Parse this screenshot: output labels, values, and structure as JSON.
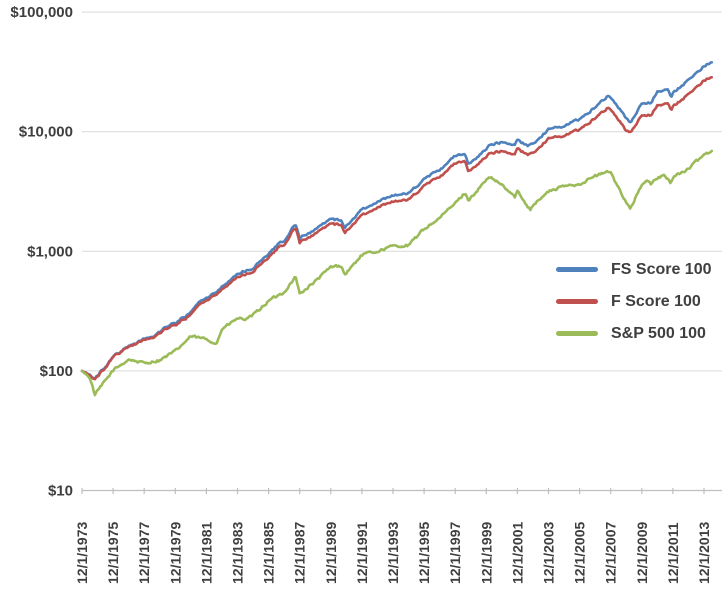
{
  "chart_data": {
    "type": "line",
    "title": "",
    "xlabel": "",
    "ylabel": "",
    "y_axis": {
      "scale": "log",
      "tick_labels": [
        "$10",
        "$100",
        "$1,000",
        "$10,000",
        "$100,000"
      ],
      "tick_values": [
        10,
        100,
        1000,
        10000,
        100000
      ],
      "ylim": [
        10,
        100000
      ]
    },
    "x_axis": {
      "tick_labels": [
        "12/1/1973",
        "12/1/1975",
        "12/1/1977",
        "12/1/1979",
        "12/1/1981",
        "12/1/1983",
        "12/1/1985",
        "12/1/1987",
        "12/1/1989",
        "12/1/1991",
        "12/1/1993",
        "12/1/1995",
        "12/1/1997",
        "12/1/1999",
        "12/1/2001",
        "12/1/2003",
        "12/1/2005",
        "12/1/2007",
        "12/1/2009",
        "12/1/2011",
        "12/1/2013"
      ],
      "label_rotation": -90
    },
    "x_domain_years": [
      1973.92,
      2013.92
    ],
    "grid": true,
    "grid_color": "#d9d9d9",
    "axis_color": "#bfbfbf",
    "text_color": "#3f3f3f",
    "legend_position": "right-middle",
    "series": [
      {
        "name": "FS Score 100",
        "color": "#4f81bd",
        "points": [
          [
            1973.92,
            100
          ],
          [
            1974.42,
            93
          ],
          [
            1974.75,
            85
          ],
          [
            1975.08,
            97
          ],
          [
            1975.92,
            131
          ],
          [
            1976.92,
            162
          ],
          [
            1977.42,
            172
          ],
          [
            1977.92,
            186
          ],
          [
            1978.58,
            196
          ],
          [
            1978.92,
            214
          ],
          [
            1979.42,
            237
          ],
          [
            1979.92,
            252
          ],
          [
            1980.25,
            270
          ],
          [
            1980.92,
            308
          ],
          [
            1981.5,
            380
          ],
          [
            1981.92,
            410
          ],
          [
            1982.42,
            440
          ],
          [
            1982.92,
            505
          ],
          [
            1983.92,
            650
          ],
          [
            1984.5,
            690
          ],
          [
            1984.92,
            725
          ],
          [
            1985.92,
            945
          ],
          [
            1986.5,
            1130
          ],
          [
            1986.92,
            1240
          ],
          [
            1987.65,
            1710
          ],
          [
            1987.92,
            1280
          ],
          [
            1988.92,
            1520
          ],
          [
            1989.92,
            1860
          ],
          [
            1990.58,
            1800
          ],
          [
            1990.83,
            1580
          ],
          [
            1991.92,
            2230
          ],
          [
            1992.92,
            2620
          ],
          [
            1993.92,
            2920
          ],
          [
            1994.92,
            3050
          ],
          [
            1995.92,
            3980
          ],
          [
            1996.92,
            4800
          ],
          [
            1997.92,
            6250
          ],
          [
            1998.58,
            6400
          ],
          [
            1998.75,
            5300
          ],
          [
            1999.92,
            7200
          ],
          [
            2000.25,
            7900
          ],
          [
            2000.92,
            8200
          ],
          [
            2001.75,
            7800
          ],
          [
            2001.92,
            8500
          ],
          [
            2002.58,
            7600
          ],
          [
            2002.92,
            8000
          ],
          [
            2003.92,
            10400
          ],
          [
            2004.92,
            11200
          ],
          [
            2005.92,
            12800
          ],
          [
            2006.92,
            16000
          ],
          [
            2007.8,
            20400
          ],
          [
            2007.92,
            19500
          ],
          [
            2008.75,
            14000
          ],
          [
            2008.92,
            13000
          ],
          [
            2009.17,
            11800
          ],
          [
            2009.92,
            17000
          ],
          [
            2010.5,
            17500
          ],
          [
            2010.92,
            21500
          ],
          [
            2011.58,
            22500
          ],
          [
            2011.83,
            19500
          ],
          [
            2011.92,
            21000
          ],
          [
            2012.92,
            27000
          ],
          [
            2013.92,
            35500
          ],
          [
            2014.42,
            38000
          ]
        ]
      },
      {
        "name": "F Score 100",
        "color": "#c0504d",
        "points": [
          [
            1973.92,
            100
          ],
          [
            1974.42,
            92
          ],
          [
            1974.75,
            84
          ],
          [
            1975.08,
            95
          ],
          [
            1975.92,
            130
          ],
          [
            1976.92,
            160
          ],
          [
            1977.42,
            170
          ],
          [
            1977.92,
            182
          ],
          [
            1978.58,
            192
          ],
          [
            1978.92,
            208
          ],
          [
            1979.42,
            228
          ],
          [
            1979.92,
            242
          ],
          [
            1980.25,
            258
          ],
          [
            1980.92,
            294
          ],
          [
            1981.5,
            360
          ],
          [
            1981.92,
            390
          ],
          [
            1982.42,
            420
          ],
          [
            1982.92,
            480
          ],
          [
            1983.92,
            612
          ],
          [
            1984.5,
            645
          ],
          [
            1984.92,
            680
          ],
          [
            1985.92,
            880
          ],
          [
            1986.5,
            1050
          ],
          [
            1986.92,
            1150
          ],
          [
            1987.65,
            1600
          ],
          [
            1987.92,
            1180
          ],
          [
            1988.92,
            1400
          ],
          [
            1989.92,
            1700
          ],
          [
            1990.58,
            1650
          ],
          [
            1990.83,
            1430
          ],
          [
            1991.92,
            2000
          ],
          [
            1992.92,
            2350
          ],
          [
            1993.92,
            2600
          ],
          [
            1994.92,
            2700
          ],
          [
            1995.92,
            3500
          ],
          [
            1996.92,
            4200
          ],
          [
            1997.92,
            5400
          ],
          [
            1998.58,
            5600
          ],
          [
            1998.75,
            4600
          ],
          [
            1999.92,
            6200
          ],
          [
            2000.25,
            6700
          ],
          [
            2000.92,
            6900
          ],
          [
            2001.75,
            6500
          ],
          [
            2001.92,
            7200
          ],
          [
            2002.58,
            6400
          ],
          [
            2002.92,
            6700
          ],
          [
            2003.92,
            8700
          ],
          [
            2004.92,
            9300
          ],
          [
            2005.92,
            10500
          ],
          [
            2006.92,
            13000
          ],
          [
            2007.8,
            16200
          ],
          [
            2007.92,
            15500
          ],
          [
            2008.75,
            11000
          ],
          [
            2008.92,
            10200
          ],
          [
            2009.17,
            9800
          ],
          [
            2009.92,
            13500
          ],
          [
            2010.5,
            13800
          ],
          [
            2010.92,
            16500
          ],
          [
            2011.58,
            17200
          ],
          [
            2011.83,
            15200
          ],
          [
            2011.92,
            16200
          ],
          [
            2012.92,
            20500
          ],
          [
            2013.92,
            27000
          ],
          [
            2014.42,
            28500
          ]
        ]
      },
      {
        "name": "S&P 500 100",
        "color": "#9bbb59",
        "points": [
          [
            1973.92,
            100
          ],
          [
            1974.42,
            88
          ],
          [
            1974.75,
            63
          ],
          [
            1975.08,
            72
          ],
          [
            1975.92,
            101
          ],
          [
            1976.92,
            125
          ],
          [
            1977.92,
            116
          ],
          [
            1978.92,
            123
          ],
          [
            1979.92,
            146
          ],
          [
            1980.92,
            194
          ],
          [
            1981.92,
            184
          ],
          [
            1982.58,
            170
          ],
          [
            1982.92,
            224
          ],
          [
            1983.92,
            274
          ],
          [
            1984.58,
            270
          ],
          [
            1984.92,
            292
          ],
          [
            1985.92,
            384
          ],
          [
            1986.92,
            456
          ],
          [
            1987.65,
            615
          ],
          [
            1987.92,
            440
          ],
          [
            1988.92,
            560
          ],
          [
            1989.92,
            737
          ],
          [
            1990.58,
            760
          ],
          [
            1990.83,
            640
          ],
          [
            1991.92,
            932
          ],
          [
            1992.92,
            1003
          ],
          [
            1993.92,
            1104
          ],
          [
            1994.92,
            1118
          ],
          [
            1995.92,
            1539
          ],
          [
            1996.92,
            1893
          ],
          [
            1997.92,
            2525
          ],
          [
            1998.58,
            3100
          ],
          [
            1998.75,
            2650
          ],
          [
            1999.92,
            3929
          ],
          [
            2000.25,
            4100
          ],
          [
            2000.92,
            3571
          ],
          [
            2001.75,
            2850
          ],
          [
            2001.92,
            3146
          ],
          [
            2002.75,
            2250
          ],
          [
            2002.92,
            2451
          ],
          [
            2003.92,
            3155
          ],
          [
            2004.92,
            3498
          ],
          [
            2005.92,
            3670
          ],
          [
            2006.92,
            4250
          ],
          [
            2007.75,
            4650
          ],
          [
            2007.92,
            4483
          ],
          [
            2008.85,
            2700
          ],
          [
            2009.17,
            2280
          ],
          [
            2009.92,
            3573
          ],
          [
            2010.33,
            3900
          ],
          [
            2010.5,
            3600
          ],
          [
            2010.92,
            4112
          ],
          [
            2011.33,
            4300
          ],
          [
            2011.75,
            3750
          ],
          [
            2011.92,
            4199
          ],
          [
            2012.92,
            4871
          ],
          [
            2013.92,
            6449
          ],
          [
            2014.42,
            6900
          ]
        ]
      }
    ]
  }
}
